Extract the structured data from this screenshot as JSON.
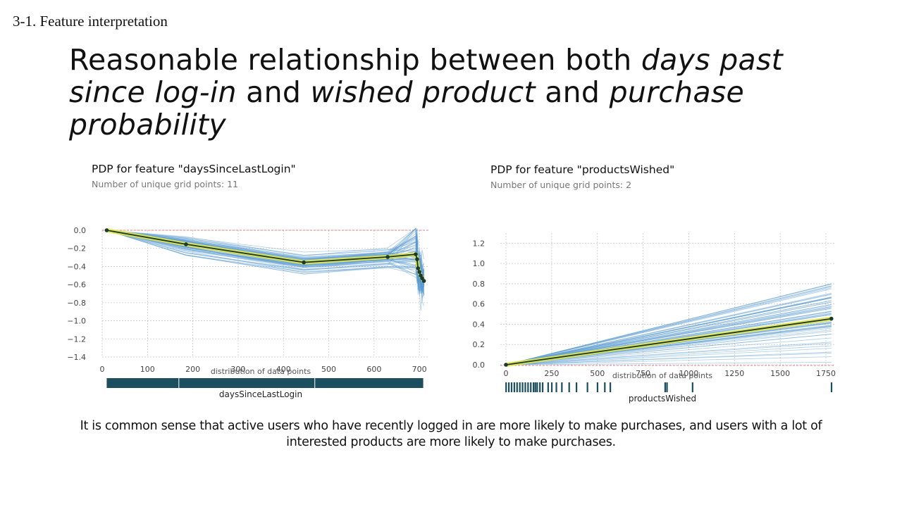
{
  "section_label": "3-1. Feature interpretation",
  "headline": {
    "plain_1": "Reasonable relationship between both ",
    "italic_1": "days past since log-in",
    "plain_2": " and ",
    "italic_2": "wished product",
    "plain_3": " and ",
    "italic_3": "purchase probability"
  },
  "caption": "It is common sense that active users who have recently logged in are more likely to make purchases, and users with a lot of interested products are more likely to make purchases.",
  "colors": {
    "pdp_line": "#1a3a30",
    "pdp_band": "#e8e84a",
    "ice_lines": "#5b9bd0",
    "dist_bar": "#1b4e5e",
    "ref_line": "#e06060"
  },
  "chart_data": [
    {
      "type": "line",
      "title": "PDP for feature \"daysSinceLastLogin\"",
      "subtitle": "Number of unique grid points: 11",
      "xlabel": "daysSinceLastLogin",
      "dist_label": "distribution of data points",
      "xlim": [
        0,
        720
      ],
      "ylim": [
        -1.4,
        0
      ],
      "xticks": [
        0,
        100,
        200,
        300,
        400,
        500,
        600,
        700
      ],
      "yticks": [
        0.0,
        -0.2,
        -0.4,
        -0.6,
        -0.8,
        -1.0,
        -1.2,
        -1.4
      ],
      "ytick_labels": [
        "0.0",
        "−0.2",
        "−0.4",
        "−0.6",
        "−0.8",
        "−1.0",
        "−1.2",
        "−1.4"
      ],
      "grid": true,
      "pdp": {
        "x": [
          10,
          185,
          445,
          630,
          692,
          695,
          697,
          700,
          703,
          706,
          710
        ],
        "y": [
          0.0,
          -0.155,
          -0.355,
          -0.295,
          -0.265,
          -0.32,
          -0.42,
          -0.46,
          -0.5,
          -0.53,
          -0.56
        ]
      },
      "distribution_segments": [
        [
          10,
          170
        ],
        [
          170,
          470
        ],
        [
          470,
          710
        ]
      ]
    },
    {
      "type": "line",
      "title": "PDP for feature \"productsWished\"",
      "subtitle": "Number of unique grid points: 2",
      "xlabel": "productsWished",
      "dist_label": "distribution of data points",
      "xlim": [
        0,
        1800
      ],
      "ylim": [
        0,
        1.3
      ],
      "xticks": [
        0,
        250,
        500,
        750,
        1000,
        1250,
        1500,
        1750
      ],
      "yticks": [
        0.0,
        0.2,
        0.4,
        0.6,
        0.8,
        1.0,
        1.2
      ],
      "ytick_labels": [
        "0.0",
        "0.2",
        "0.4",
        "0.6",
        "0.8",
        "1.0",
        "1.2"
      ],
      "grid": true,
      "pdp": {
        "x": [
          0,
          1780
        ],
        "y": [
          0.0,
          0.455
        ]
      },
      "distribution_ticks": [
        0,
        15,
        30,
        45,
        60,
        75,
        90,
        105,
        120,
        135,
        150,
        160,
        170,
        185,
        200,
        230,
        250,
        275,
        305,
        345,
        385,
        445,
        500,
        540,
        570,
        870,
        880,
        1020,
        1780
      ]
    }
  ]
}
